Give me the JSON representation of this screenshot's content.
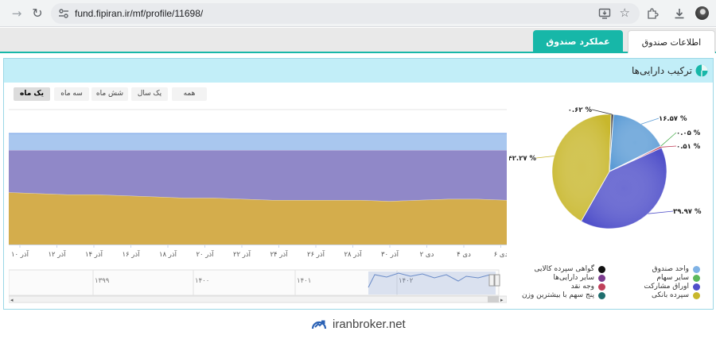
{
  "browser": {
    "url": "fund.fipiran.ir/mf/profile/11698/",
    "icons": [
      "forward-icon",
      "reload-icon",
      "tune-icon",
      "install-icon",
      "star-icon",
      "extensions-icon",
      "download-icon",
      "profile-avatar"
    ]
  },
  "tabs": [
    {
      "label": "اطلاعات صندوق",
      "active": false
    },
    {
      "label": "عملکرد صندوق",
      "active": true
    }
  ],
  "panel": {
    "title": "ترکیب دارایی‌ها",
    "accent": "#17b7a8",
    "header_bg": "#c2eef8"
  },
  "range_buttons": [
    {
      "label": "همه",
      "active": false
    },
    {
      "label": "یک سال",
      "active": false
    },
    {
      "label": "شش ماه",
      "active": false
    },
    {
      "label": "سه ماه",
      "active": false
    },
    {
      "label": "یک ماه",
      "active": true
    }
  ],
  "chart_data": [
    {
      "type": "area",
      "stacked": true,
      "x_tick_labels": [
        "آذر ۱۰",
        "آذر ۱۲",
        "آذر ۱۴",
        "آذر ۱۶",
        "آذر ۱۸",
        "آذر ۲۰",
        "آذر ۲۲",
        "آذر ۲۴",
        "آذر ۲۶",
        "آذر ۲۸",
        "آذر ۳۰",
        "دی ۲",
        "دی ۴",
        "دی ۶",
        "دی ۸"
      ],
      "ylim": [
        0,
        100
      ],
      "grid": false,
      "series": [
        {
          "color": "#d4ad4c",
          "values": [
            47,
            46,
            45,
            45,
            44,
            43,
            42,
            42,
            41,
            40,
            40,
            40,
            40,
            39,
            40,
            41,
            41,
            40
          ]
        },
        {
          "color": "#9088c8",
          "values": [
            38,
            39,
            40,
            40,
            41,
            42,
            43,
            43,
            44,
            45,
            45,
            45,
            45,
            46,
            45,
            44,
            44,
            45
          ]
        },
        {
          "color": "#a9c7ef",
          "values": [
            15,
            15,
            15,
            15,
            15,
            15,
            15,
            15,
            15,
            15,
            15,
            15,
            15,
            15,
            15,
            15,
            15,
            15
          ]
        }
      ],
      "navigator": {
        "labels": [
          "۱۳۹۹",
          "۱۴۰۰",
          "۱۴۰۱",
          "۱۴۰۲"
        ]
      }
    },
    {
      "type": "pie",
      "slices": [
        {
          "label": "۱۶.۵۷ %",
          "value": 16.57,
          "color": "#5b9bd5"
        },
        {
          "label": "۰.۰۵ %",
          "value": 0.05,
          "color": "#4caf50"
        },
        {
          "label": "۰.۵۱ %",
          "value": 0.51,
          "color": "#c0405a"
        },
        {
          "label": "۳۹.۹۷ %",
          "value": 39.97,
          "color": "#4f4fc9"
        },
        {
          "label": "۴۲.۲۷ %",
          "value": 42.27,
          "color": "#c8b72c"
        },
        {
          "label": "۰.۶۲ %",
          "value": 0.62,
          "color": "#333333"
        }
      ]
    }
  ],
  "legend": [
    {
      "label": "واحد صندوق",
      "color": "#7fb2e5"
    },
    {
      "label": "سایر سهام",
      "color": "#5cb85c"
    },
    {
      "label": "اوراق مشارکت",
      "color": "#4f4fc9"
    },
    {
      "label": "سپرده بانکی",
      "color": "#c8b72c"
    },
    {
      "label": "گواهی سپرده کالایی",
      "color": "#111111"
    },
    {
      "label": "سایر دارایی‌ها",
      "color": "#7b3b8e"
    },
    {
      "label": "وجه نقد",
      "color": "#c0405a"
    },
    {
      "label": "پنج سهم با بیشترین وزن",
      "color": "#1f6e6e"
    }
  ],
  "brand": {
    "text": "iranbroker.net",
    "color": "#2b62b5"
  }
}
